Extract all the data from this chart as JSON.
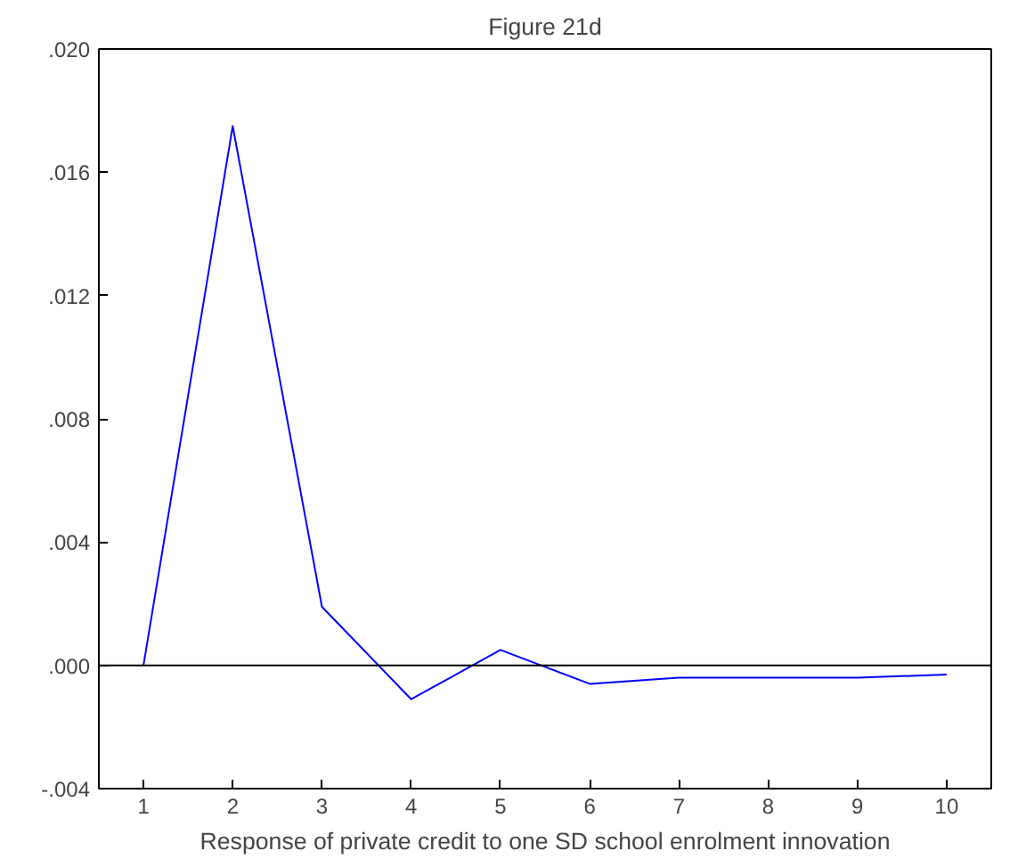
{
  "chart_data": {
    "type": "line",
    "title": "Figure 21d",
    "xlabel": "Response of private credit to one SD school enrolment innovation",
    "categories": [
      "1",
      "2",
      "3",
      "4",
      "5",
      "6",
      "7",
      "8",
      "9",
      "10"
    ],
    "series": [
      {
        "color": "#0000ff",
        "values": [
          0.0,
          0.0175,
          0.0019,
          -0.0011,
          0.0005,
          -0.0006,
          -0.0004,
          -0.0004,
          -0.0004,
          -0.0003
        ]
      }
    ],
    "ylim": [
      -0.004,
      0.02
    ],
    "yticks": [
      {
        "value": -0.004,
        "label": "-.004"
      },
      {
        "value": 0.0,
        "label": ".000"
      },
      {
        "value": 0.004,
        "label": ".004"
      },
      {
        "value": 0.008,
        "label": ".008"
      },
      {
        "value": 0.012,
        "label": ".012"
      },
      {
        "value": 0.016,
        "label": ".016"
      },
      {
        "value": 0.02,
        "label": ".020"
      }
    ],
    "ref_lines": [
      {
        "axis": "y",
        "value": 0.0,
        "color": "#000000"
      }
    ],
    "grid": false,
    "marker": "none",
    "line_style": "solid"
  }
}
